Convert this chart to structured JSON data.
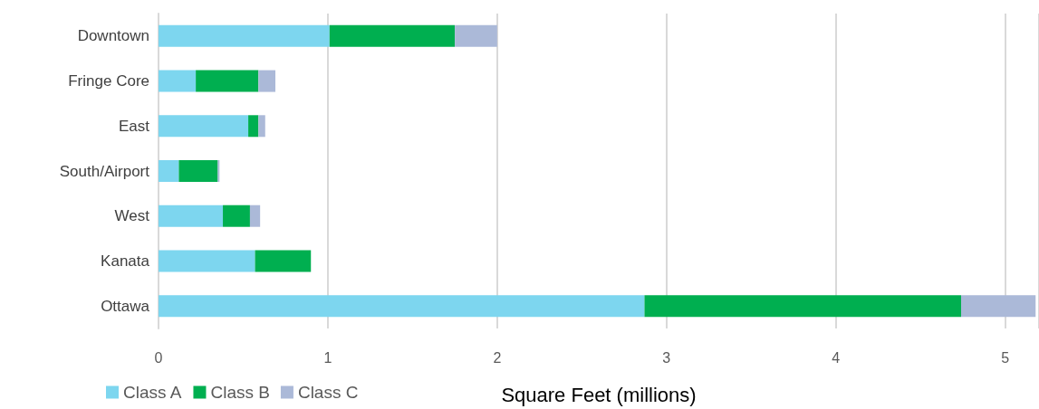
{
  "chart_data": {
    "type": "bar",
    "orientation": "horizontal",
    "stacked": true,
    "categories": [
      "Downtown",
      "Fringe Core",
      "East",
      "South/Airport",
      "West",
      "Kanata",
      "Ottawa"
    ],
    "series": [
      {
        "name": "Class A",
        "color": "#7dd6ef",
        "values": [
          1.01,
          0.22,
          0.53,
          0.12,
          0.38,
          0.57,
          2.87
        ]
      },
      {
        "name": "Class B",
        "color": "#00af50",
        "values": [
          0.74,
          0.37,
          0.06,
          0.23,
          0.16,
          0.33,
          1.87
        ]
      },
      {
        "name": "Class C",
        "color": "#abb9d8",
        "values": [
          0.25,
          0.1,
          0.04,
          0.01,
          0.06,
          0,
          0.44
        ]
      }
    ],
    "xlabel": "Square Feet (millions)",
    "xlim": [
      0,
      5.2
    ],
    "xticks": [
      0,
      1,
      2,
      3,
      4,
      5
    ],
    "grid": "x",
    "legend": "bottom left"
  }
}
